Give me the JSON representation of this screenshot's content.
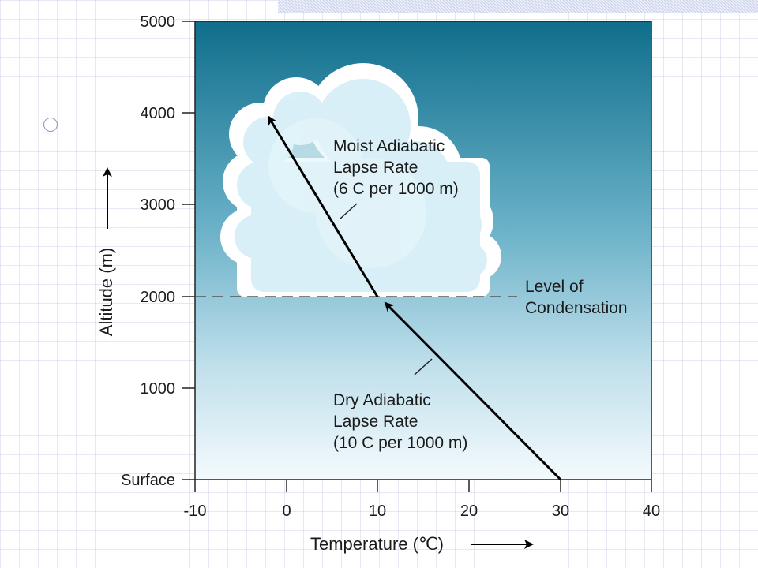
{
  "diagram": {
    "y_axis": {
      "title": "Altitude (m)",
      "ticks": [
        "5000",
        "4000",
        "3000",
        "2000",
        "1000",
        "Surface"
      ]
    },
    "x_axis": {
      "title": "Temperature (℃)",
      "ticks": [
        "-10",
        "0",
        "10",
        "20",
        "30",
        "40"
      ]
    },
    "labels": {
      "moist": [
        "Moist Adiabatic",
        "Lapse Rate",
        "(6  C per 1000 m)"
      ],
      "dry": [
        "Dry Adiabatic",
        "Lapse Rate",
        "(10 C  per 1000 m)"
      ],
      "condensation": [
        "Level of",
        "Condensation"
      ]
    },
    "colors": {
      "sky_top": "#0f6e8c",
      "sky_bottom": "#f4fafd",
      "cloud": "#ddf2f8",
      "line": "#000000"
    }
  }
}
